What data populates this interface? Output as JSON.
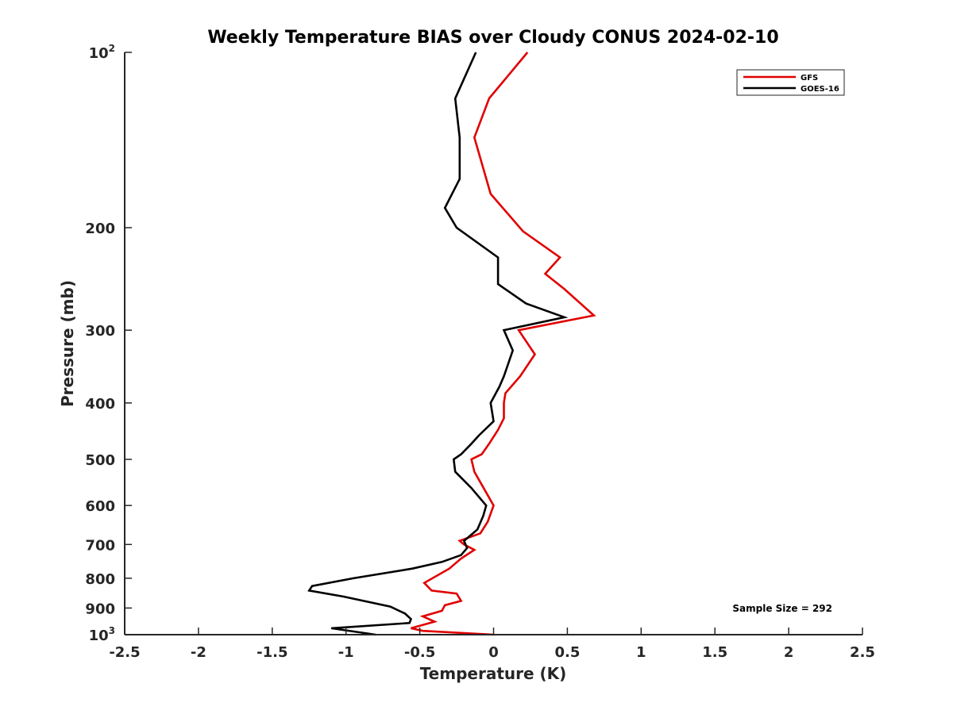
{
  "chart_data": {
    "type": "line",
    "title": "Weekly Temperature BIAS over Cloudy CONUS 2024-02-10",
    "xlabel": "Temperature (K)",
    "ylabel": "Pressure (mb)",
    "xlim": [
      -2.5,
      2.5
    ],
    "ylim": [
      100,
      1000
    ],
    "y_scale": "log",
    "y_reversed": true,
    "x_ticks": [
      "-2.5",
      "-2",
      "-1.5",
      "-1",
      "-0.5",
      "0",
      "0.5",
      "1",
      "1.5",
      "2",
      "2.5"
    ],
    "x_tick_values": [
      -2.5,
      -2,
      -1.5,
      -1,
      -0.5,
      0,
      0.5,
      1,
      1.5,
      2,
      2.5
    ],
    "y_ticks": [
      {
        "value": 100,
        "base": "10",
        "exp": "2"
      },
      {
        "value": 200,
        "label": "200"
      },
      {
        "value": 300,
        "label": "300"
      },
      {
        "value": 400,
        "label": "400"
      },
      {
        "value": 500,
        "label": "500"
      },
      {
        "value": 600,
        "label": "600"
      },
      {
        "value": 700,
        "label": "700"
      },
      {
        "value": 800,
        "label": "800"
      },
      {
        "value": 900,
        "label": "900"
      },
      {
        "value": 1000,
        "base": "10",
        "exp": "3"
      }
    ],
    "legend_position": "top-right",
    "grid": false,
    "annotation": "Sample Size = 292",
    "series": [
      {
        "name": "GFS",
        "color": "#e00000",
        "points": [
          [
            0.23,
            100
          ],
          [
            -0.03,
            120
          ],
          [
            -0.13,
            140
          ],
          [
            -0.02,
            175
          ],
          [
            0.2,
            203
          ],
          [
            0.45,
            225
          ],
          [
            0.35,
            240
          ],
          [
            0.48,
            255
          ],
          [
            0.68,
            283
          ],
          [
            0.17,
            300
          ],
          [
            0.28,
            330
          ],
          [
            0.18,
            360
          ],
          [
            0.08,
            385
          ],
          [
            0.07,
            400
          ],
          [
            0.07,
            425
          ],
          [
            0.03,
            445
          ],
          [
            -0.03,
            470
          ],
          [
            -0.08,
            490
          ],
          [
            -0.15,
            500
          ],
          [
            -0.13,
            525
          ],
          [
            -0.05,
            570
          ],
          [
            0.0,
            600
          ],
          [
            -0.04,
            640
          ],
          [
            -0.09,
            670
          ],
          [
            -0.23,
            690
          ],
          [
            -0.2,
            700
          ],
          [
            -0.13,
            715
          ],
          [
            -0.22,
            740
          ],
          [
            -0.3,
            770
          ],
          [
            -0.47,
            815
          ],
          [
            -0.42,
            840
          ],
          [
            -0.25,
            850
          ],
          [
            -0.22,
            875
          ],
          [
            -0.33,
            890
          ],
          [
            -0.35,
            910
          ],
          [
            -0.48,
            930
          ],
          [
            -0.4,
            950
          ],
          [
            -0.56,
            975
          ],
          [
            -0.48,
            985
          ],
          [
            0.0,
            1000
          ]
        ]
      },
      {
        "name": "GOES-16",
        "color": "#000000",
        "points": [
          [
            -0.12,
            100
          ],
          [
            -0.26,
            120
          ],
          [
            -0.23,
            140
          ],
          [
            -0.23,
            165
          ],
          [
            -0.33,
            185
          ],
          [
            -0.25,
            200
          ],
          [
            0.03,
            225
          ],
          [
            0.03,
            250
          ],
          [
            0.22,
            270
          ],
          [
            0.48,
            285
          ],
          [
            0.07,
            300
          ],
          [
            0.13,
            325
          ],
          [
            0.07,
            360
          ],
          [
            0.04,
            375
          ],
          [
            -0.02,
            400
          ],
          [
            0.0,
            430
          ],
          [
            -0.1,
            455
          ],
          [
            -0.15,
            470
          ],
          [
            -0.22,
            490
          ],
          [
            -0.27,
            500
          ],
          [
            -0.26,
            525
          ],
          [
            -0.15,
            560
          ],
          [
            -0.05,
            600
          ],
          [
            -0.07,
            625
          ],
          [
            -0.11,
            660
          ],
          [
            -0.2,
            690
          ],
          [
            -0.18,
            710
          ],
          [
            -0.22,
            730
          ],
          [
            -0.35,
            750
          ],
          [
            -0.55,
            770
          ],
          [
            -0.95,
            800
          ],
          [
            -1.23,
            825
          ],
          [
            -1.25,
            840
          ],
          [
            -1.02,
            860
          ],
          [
            -0.7,
            895
          ],
          [
            -0.6,
            920
          ],
          [
            -0.56,
            940
          ],
          [
            -0.57,
            955
          ],
          [
            -1.1,
            975
          ],
          [
            -0.8,
            1000
          ]
        ]
      }
    ]
  }
}
